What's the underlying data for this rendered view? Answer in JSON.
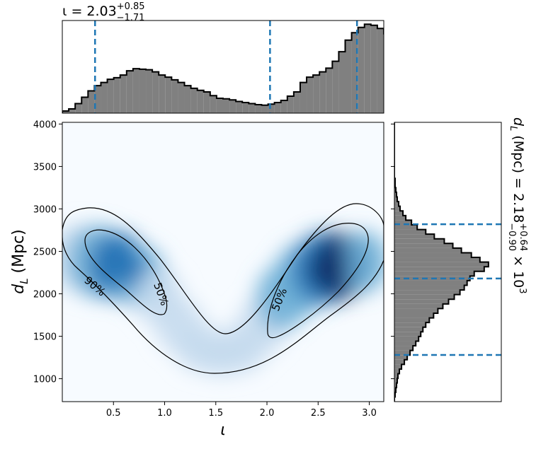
{
  "colors": {
    "hist_fill": "#808080",
    "hist_edge": "#000000",
    "quantile_line": "#1f77b4",
    "density_colormap": [
      "#f7fbff",
      "#c6dbef",
      "#6baed6",
      "#2171b5",
      "#08306b"
    ],
    "contour": "#000000"
  },
  "labels": {
    "top_title_main": "ι = 2.03",
    "top_title_sup": "+0.85",
    "top_title_sub": "−1.71",
    "right_title_main": "d",
    "right_title_sub_L": "L",
    "right_title_mid": " (Mpc) = 2.18",
    "right_title_sup": "+0.64",
    "right_title_sub": "−0.90",
    "right_title_tail": " × 10",
    "right_title_exp": "3",
    "xlabel": "ι",
    "ylabel_main": "d",
    "ylabel_sub": "L",
    "ylabel_tail": " (Mpc)",
    "contour_90": "90%",
    "contour_50_left": "50%",
    "contour_50_right": "50%"
  },
  "chart_data": [
    {
      "type": "bar",
      "role": "marginal histogram of ι",
      "xlim": [
        0.0,
        3.1416
      ],
      "bin_edges_start": 0.0,
      "bin_width": 0.06283,
      "values": [
        4,
        8,
        18,
        30,
        42,
        52,
        58,
        64,
        67,
        72,
        80,
        84,
        83,
        82,
        78,
        72,
        68,
        63,
        58,
        52,
        47,
        43,
        40,
        33,
        28,
        27,
        25,
        22,
        20,
        18,
        16,
        15,
        17,
        20,
        24,
        32,
        40,
        58,
        68,
        72,
        78,
        85,
        98,
        116,
        138,
        152,
        162,
        168,
        166,
        160,
        150,
        136,
        118,
        96,
        70,
        46,
        30,
        18,
        8,
        4
      ],
      "quantiles": [
        0.32,
        2.03,
        2.88
      ]
    },
    {
      "type": "heatmap",
      "role": "2D posterior density with contours",
      "xlabel": "ι",
      "ylabel": "d_L (Mpc)",
      "xlim": [
        0.0,
        3.1416
      ],
      "ylim": [
        730,
        4020
      ],
      "xticks": [
        0.5,
        1.0,
        1.5,
        2.0,
        2.5,
        3.0
      ],
      "yticks": [
        1000,
        1500,
        2000,
        2500,
        3000,
        3500,
        4000
      ],
      "contours": [
        "90%",
        "50%",
        "50%"
      ],
      "modes": [
        {
          "x": 0.6,
          "y": 2330,
          "weight": 0.8
        },
        {
          "x": 2.6,
          "y": 2300,
          "weight": 1.0
        }
      ]
    },
    {
      "type": "bar",
      "orientation": "horizontal",
      "role": "marginal histogram of d_L",
      "ylim": [
        730,
        4020
      ],
      "bin_edges_start": 730,
      "bin_width": 54.8,
      "values": [
        0,
        1,
        2,
        3,
        4,
        5,
        7,
        10,
        14,
        18,
        22,
        26,
        30,
        34,
        37,
        40,
        44,
        49,
        55,
        61,
        68,
        76,
        84,
        92,
        98,
        102,
        106,
        112,
        126,
        132,
        120,
        108,
        94,
        82,
        70,
        56,
        44,
        32,
        24,
        16,
        12,
        8,
        6,
        4,
        3,
        2,
        1,
        1,
        0,
        0,
        0,
        0,
        0,
        0,
        0,
        0,
        0,
        0,
        0,
        0
      ],
      "quantiles": [
        1280,
        2180,
        2820
      ]
    }
  ]
}
